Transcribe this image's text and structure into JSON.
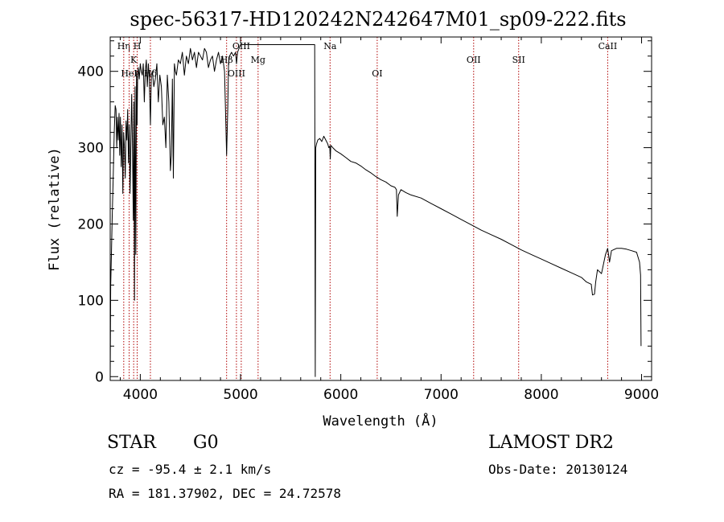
{
  "chart_data": {
    "type": "line",
    "title": "spec-56317-HD120242N242647M01_sp09-222.fits",
    "xlabel": "Wavelength (Å)",
    "ylabel": "Flux (relative)",
    "xlim": [
      3700,
      9100
    ],
    "ylim": [
      -5,
      445
    ],
    "xticks": [
      4000,
      5000,
      6000,
      7000,
      8000,
      9000
    ],
    "yticks": [
      0,
      100,
      200,
      300,
      400
    ],
    "grid": false,
    "series": [
      {
        "x": [
          3700,
          3705,
          3712,
          3720,
          3730,
          3740,
          3750,
          3758,
          3765,
          3772,
          3780,
          3788,
          3795,
          3802,
          3810,
          3818,
          3826,
          3834,
          3842,
          3850,
          3858,
          3866,
          3874,
          3882,
          3890,
          3898,
          3906,
          3914,
          3922,
          3930,
          3936,
          3942,
          3948,
          3955,
          3962,
          3968,
          3974,
          3980,
          3990,
          4000,
          4010,
          4020,
          4030,
          4040,
          4050,
          4060,
          4070,
          4080,
          4090,
          4101,
          4110,
          4120,
          4135,
          4150,
          4165,
          4180,
          4195,
          4210,
          4225,
          4240,
          4255,
          4270,
          4285,
          4300,
          4310,
          4320,
          4330,
          4340,
          4350,
          4360,
          4380,
          4400,
          4420,
          4440,
          4460,
          4480,
          4500,
          4520,
          4540,
          4560,
          4580,
          4600,
          4620,
          4640,
          4660,
          4680,
          4700,
          4720,
          4740,
          4760,
          4780,
          4800,
          4820,
          4840,
          4850,
          4861,
          4872,
          4880,
          4890,
          4910,
          4930,
          4950,
          4960,
          4970,
          5000,
          5050,
          5100,
          5150,
          5200,
          5300,
          5400,
          5500,
          5600,
          5700,
          5740,
          5745,
          5750,
          5758,
          5770,
          5790,
          5810,
          5830,
          5850,
          5870,
          5880,
          5890,
          5895,
          5900,
          5920,
          5950,
          6000,
          6050,
          6100,
          6150,
          6200,
          6250,
          6300,
          6350,
          6400,
          6450,
          6500,
          6540,
          6555,
          6563,
          6575,
          6600,
          6650,
          6700,
          6800,
          6900,
          7000,
          7100,
          7200,
          7300,
          7400,
          7500,
          7600,
          7700,
          7800,
          7900,
          8000,
          8100,
          8200,
          8300,
          8400,
          8450,
          8498,
          8510,
          8530,
          8542,
          8560,
          8600,
          8640,
          8662,
          8680,
          8700,
          8750,
          8800,
          8850,
          8900,
          8950,
          8980,
          8990,
          8995
        ],
        "y": [
          0,
          120,
          160,
          210,
          260,
          320,
          355,
          350,
          300,
          340,
          310,
          345,
          290,
          340,
          275,
          330,
          240,
          320,
          300,
          260,
          335,
          310,
          350,
          280,
          330,
          240,
          310,
          370,
          300,
          205,
          360,
          100,
          380,
          160,
          400,
          330,
          395,
          405,
          390,
          410,
          400,
          395,
          410,
          360,
          400,
          415,
          380,
          410,
          390,
          330,
          395,
          400,
          380,
          390,
          410,
          360,
          395,
          380,
          330,
          340,
          300,
          395,
          360,
          270,
          290,
          390,
          260,
          410,
          400,
          395,
          415,
          410,
          425,
          395,
          420,
          410,
          430,
          415,
          425,
          405,
          425,
          420,
          415,
          430,
          425,
          405,
          415,
          420,
          400,
          415,
          425,
          410,
          420,
          400,
          350,
          290,
          350,
          410,
          420,
          425,
          420,
          425,
          410,
          425,
          435,
          435,
          435,
          435,
          435,
          435,
          435,
          435,
          435,
          435,
          435,
          0,
          300,
          305,
          310,
          312,
          308,
          315,
          310,
          305,
          300,
          302,
          285,
          303,
          300,
          296,
          292,
          287,
          282,
          280,
          276,
          271,
          267,
          262,
          258,
          255,
          250,
          248,
          245,
          210,
          238,
          245,
          241,
          238,
          234,
          227,
          220,
          213,
          206,
          199,
          192,
          186,
          180,
          173,
          166,
          160,
          154,
          148,
          142,
          136,
          130,
          124,
          121,
          107,
          108,
          124,
          140,
          135,
          160,
          168,
          150,
          165,
          168,
          168,
          167,
          165,
          163,
          150,
          133,
          40
        ]
      }
    ],
    "lines": [
      {
        "label": "Hη",
        "wave": 3835,
        "row": 1
      },
      {
        "label": "HeI",
        "wave": 3889,
        "row": 3
      },
      {
        "label": "K",
        "wave": 3934,
        "row": 2
      },
      {
        "label": "H",
        "wave": 3969,
        "row": 1
      },
      {
        "label": "Hδ",
        "wave": 4101,
        "row": 3
      },
      {
        "label": "Hβ",
        "wave": 4861,
        "row": 2
      },
      {
        "label": "OIII",
        "wave": 4959,
        "row": 3
      },
      {
        "label": "OIII",
        "wave": 5007,
        "row": 1
      },
      {
        "label": "Mg",
        "wave": 5175,
        "row": 2
      },
      {
        "label": "Na",
        "wave": 5893,
        "row": 1
      },
      {
        "label": "OI",
        "wave": 6363,
        "row": 3
      },
      {
        "label": "OII",
        "wave": 7325,
        "row": 2
      },
      {
        "label": "SII",
        "wave": 7774,
        "row": 2
      },
      {
        "label": "CaII",
        "wave": 8662,
        "row": 1
      }
    ]
  },
  "info": {
    "class": "STAR",
    "subclass": "G0",
    "survey": "LAMOST DR2",
    "cz": "cz = -95.4 ± 2.1 km/s",
    "obs_date": "Obs-Date: 20130124",
    "radec": "RA = 181.37902, DEC =  24.72578"
  }
}
